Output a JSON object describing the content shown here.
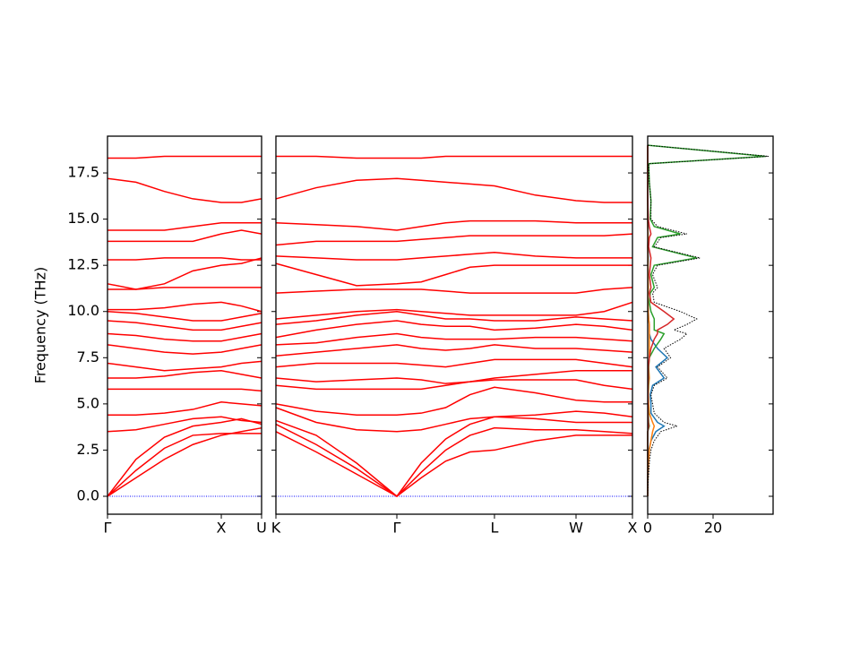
{
  "chart_data": [
    {
      "type": "line",
      "ylabel": "Frequency (THz)",
      "color": "#ff0000",
      "x": [
        0,
        0.25,
        0.5,
        0.75,
        1.0,
        1.177,
        1.354
      ],
      "xlim": [
        0,
        1.354
      ],
      "xticks": [
        {
          "value": 0,
          "label": "Γ"
        },
        {
          "value": 1.0,
          "label": "X"
        },
        {
          "value": 1.354,
          "label": "U"
        }
      ],
      "ylim": [
        -0.97,
        19.49
      ],
      "yticks": [
        {
          "value": 0,
          "label": "0.0"
        },
        2.5,
        {
          "value": 5,
          "label": "5.0"
        },
        7.5,
        {
          "value": 10,
          "label": "10.0"
        },
        12.5,
        {
          "value": 15,
          "label": "15.0"
        },
        17.5
      ],
      "series": [
        {
          "values": [
            0,
            1.0,
            2.0,
            2.8,
            3.3,
            3.5,
            3.7
          ]
        },
        {
          "values": [
            0,
            1.4,
            2.6,
            3.3,
            3.4,
            3.4,
            3.4
          ]
        },
        {
          "values": [
            0,
            2.0,
            3.2,
            3.8,
            4.0,
            4.2,
            3.9
          ]
        },
        {
          "values": [
            3.5,
            3.6,
            3.9,
            4.2,
            4.3,
            4.1,
            4.0
          ]
        },
        {
          "values": [
            4.4,
            4.4,
            4.5,
            4.7,
            5.1,
            5.0,
            4.9
          ]
        },
        {
          "values": [
            5.8,
            5.8,
            5.8,
            5.8,
            5.8,
            5.8,
            5.7
          ]
        },
        {
          "values": [
            6.4,
            6.4,
            6.5,
            6.7,
            6.8,
            6.6,
            6.4
          ]
        },
        {
          "values": [
            7.2,
            7.0,
            6.8,
            6.9,
            7.0,
            7.2,
            7.3
          ]
        },
        {
          "values": [
            8.2,
            8.0,
            7.8,
            7.7,
            7.8,
            8.0,
            8.2
          ]
        },
        {
          "values": [
            8.8,
            8.7,
            8.5,
            8.4,
            8.4,
            8.6,
            8.8
          ]
        },
        {
          "values": [
            9.5,
            9.4,
            9.2,
            9.0,
            9.0,
            9.2,
            9.4
          ]
        },
        {
          "values": [
            10.0,
            9.9,
            9.7,
            9.5,
            9.5,
            9.7,
            9.9
          ]
        },
        {
          "values": [
            10.1,
            10.1,
            10.2,
            10.4,
            10.5,
            10.3,
            10.0
          ]
        },
        {
          "values": [
            11.2,
            11.2,
            11.3,
            11.3,
            11.3,
            11.3,
            11.3
          ]
        },
        {
          "values": [
            11.5,
            11.2,
            11.5,
            12.2,
            12.5,
            12.6,
            12.9
          ]
        },
        {
          "values": [
            12.8,
            12.8,
            12.9,
            12.9,
            12.9,
            12.8,
            12.8
          ]
        },
        {
          "values": [
            13.8,
            13.8,
            13.8,
            13.8,
            14.2,
            14.4,
            14.2
          ]
        },
        {
          "values": [
            14.4,
            14.4,
            14.4,
            14.6,
            14.8,
            14.8,
            14.8
          ]
        },
        {
          "values": [
            17.2,
            17.0,
            16.5,
            16.1,
            15.9,
            15.9,
            16.1
          ]
        },
        {
          "values": [
            18.3,
            18.3,
            18.4,
            18.4,
            18.4,
            18.4,
            18.4
          ]
        }
      ]
    },
    {
      "type": "line",
      "color": "#ff0000",
      "x": [
        0,
        0.354,
        0.709,
        1.063,
        1.277,
        1.492,
        1.706,
        1.921,
        2.28,
        2.638,
        2.886,
        3.134
      ],
      "xlim": [
        0,
        3.134
      ],
      "xticks": [
        {
          "value": 0,
          "label": "K"
        },
        {
          "value": 1.063,
          "label": "Γ"
        },
        {
          "value": 1.921,
          "label": "L"
        },
        {
          "value": 2.638,
          "label": "W"
        },
        {
          "value": 3.134,
          "label": "X"
        }
      ],
      "series": [
        {
          "values": [
            3.5,
            2.4,
            1.2,
            0,
            1.0,
            1.9,
            2.4,
            2.5,
            3.0,
            3.3,
            3.3,
            3.3
          ]
        },
        {
          "values": [
            3.9,
            2.8,
            1.5,
            0,
            1.3,
            2.5,
            3.3,
            3.7,
            3.6,
            3.6,
            3.5,
            3.4
          ]
        },
        {
          "values": [
            4.1,
            3.3,
            1.8,
            0,
            1.8,
            3.1,
            3.9,
            4.3,
            4.2,
            4.0,
            4.0,
            4.0
          ]
        },
        {
          "values": [
            4.8,
            4.0,
            3.6,
            3.5,
            3.6,
            3.9,
            4.2,
            4.3,
            4.4,
            4.6,
            4.5,
            4.3
          ]
        },
        {
          "values": [
            5.0,
            4.6,
            4.4,
            4.4,
            4.5,
            4.8,
            5.5,
            5.9,
            5.6,
            5.2,
            5.1,
            5.1
          ]
        },
        {
          "values": [
            6.0,
            5.8,
            5.8,
            5.8,
            5.8,
            6.0,
            6.2,
            6.3,
            6.3,
            6.3,
            6.0,
            5.8
          ]
        },
        {
          "values": [
            6.4,
            6.2,
            6.3,
            6.4,
            6.3,
            6.1,
            6.2,
            6.4,
            6.6,
            6.8,
            6.8,
            6.8
          ]
        },
        {
          "values": [
            7.0,
            7.2,
            7.2,
            7.2,
            7.1,
            7.0,
            7.2,
            7.4,
            7.4,
            7.4,
            7.2,
            7.0
          ]
        },
        {
          "values": [
            7.6,
            7.8,
            8.0,
            8.2,
            8.0,
            7.9,
            8.0,
            8.2,
            8.0,
            8.0,
            7.9,
            7.8
          ]
        },
        {
          "values": [
            8.2,
            8.3,
            8.6,
            8.8,
            8.6,
            8.5,
            8.5,
            8.5,
            8.6,
            8.6,
            8.5,
            8.4
          ]
        },
        {
          "values": [
            8.6,
            9.0,
            9.3,
            9.5,
            9.3,
            9.2,
            9.2,
            9.0,
            9.1,
            9.3,
            9.2,
            9.0
          ]
        },
        {
          "values": [
            9.3,
            9.5,
            9.8,
            10.0,
            9.8,
            9.6,
            9.6,
            9.5,
            9.5,
            9.7,
            9.6,
            9.5
          ]
        },
        {
          "values": [
            9.6,
            9.8,
            10.0,
            10.1,
            10.0,
            9.9,
            9.8,
            9.8,
            9.8,
            9.8,
            10.0,
            10.5
          ]
        },
        {
          "values": [
            11.0,
            11.1,
            11.2,
            11.2,
            11.2,
            11.1,
            11.0,
            11.0,
            11.0,
            11.0,
            11.2,
            11.3
          ]
        },
        {
          "values": [
            12.6,
            12.0,
            11.4,
            11.5,
            11.6,
            12.0,
            12.4,
            12.5,
            12.5,
            12.5,
            12.5,
            12.5
          ]
        },
        {
          "values": [
            13.0,
            12.9,
            12.8,
            12.8,
            12.9,
            13.0,
            13.1,
            13.2,
            13.0,
            12.9,
            12.9,
            12.9
          ]
        },
        {
          "values": [
            13.6,
            13.8,
            13.8,
            13.8,
            13.9,
            14.0,
            14.1,
            14.1,
            14.1,
            14.1,
            14.1,
            14.2
          ]
        },
        {
          "values": [
            14.8,
            14.7,
            14.6,
            14.4,
            14.6,
            14.8,
            14.9,
            14.9,
            14.9,
            14.8,
            14.8,
            14.8
          ]
        },
        {
          "values": [
            16.1,
            16.7,
            17.1,
            17.2,
            17.1,
            17.0,
            16.9,
            16.8,
            16.3,
            16.0,
            15.9,
            15.9
          ]
        },
        {
          "values": [
            18.4,
            18.4,
            18.3,
            18.3,
            18.3,
            18.4,
            18.4,
            18.4,
            18.4,
            18.4,
            18.4,
            18.4
          ]
        }
      ]
    },
    {
      "type": "line",
      "orientation": "horizontal",
      "y": [
        0,
        0.5,
        1,
        1.5,
        2,
        2.5,
        3,
        3.5,
        3.8,
        4,
        4.5,
        5,
        5.5,
        6,
        6.4,
        7,
        7.5,
        8,
        8.5,
        8.8,
        9,
        9.3,
        9.6,
        10,
        10.5,
        11,
        11.3,
        12,
        12.5,
        12.9,
        13.5,
        14,
        14.2,
        14.6,
        15,
        16,
        17,
        18,
        18.4,
        19
      ],
      "xlim": [
        0,
        38.36
      ],
      "xticks": [
        0,
        20
      ],
      "series": [
        {
          "color": "#1f77b4",
          "values": [
            0,
            0,
            0,
            0.1,
            0.2,
            0.4,
            1,
            2.5,
            5,
            3,
            1,
            1,
            0.8,
            1.5,
            5,
            2.5,
            6,
            3,
            1,
            0.5,
            0.5,
            0.5,
            0.3,
            0.2,
            0.1,
            0.1,
            0.2,
            0.1,
            0.1,
            0.2,
            0.1,
            0.1,
            0.1,
            0.1,
            0,
            0,
            0,
            0,
            0,
            0
          ]
        },
        {
          "color": "#ff7f0e",
          "values": [
            0,
            0.05,
            0.1,
            0.2,
            0.3,
            0.5,
            1,
            1.5,
            2,
            1.5,
            0.5,
            0.3,
            0.2,
            0.3,
            0.5,
            0.3,
            0.5,
            0.5,
            0.5,
            0.5,
            0.5,
            0.5,
            0.3,
            0.2,
            0.1,
            0.1,
            0.2,
            0.1,
            0.1,
            0.1,
            0,
            0.1,
            0.1,
            0,
            0,
            0,
            0,
            0,
            0,
            0
          ]
        },
        {
          "color": "#2ca02c",
          "values": [
            0,
            0,
            0,
            0,
            0,
            0,
            0,
            0,
            0.5,
            0.3,
            0.2,
            0.1,
            0.1,
            0.2,
            0.3,
            0.3,
            0.5,
            2,
            4,
            5,
            2,
            2,
            2,
            1,
            0.5,
            0.8,
            2,
            1,
            2,
            15,
            1.5,
            3,
            10,
            2,
            0.8,
            1,
            0.5,
            0.3,
            36,
            0
          ]
        },
        {
          "color": "#d62728",
          "values": [
            0,
            0,
            0,
            0,
            0,
            0,
            0,
            0,
            0.3,
            0.2,
            0.1,
            0.1,
            0.1,
            0.1,
            0.2,
            0.2,
            0.5,
            1,
            2,
            3,
            3,
            6,
            8,
            5,
            1,
            0.5,
            1,
            0.5,
            0.8,
            1,
            0.3,
            0.5,
            1,
            0.5,
            0.2,
            0,
            0,
            0,
            0,
            0
          ]
        },
        {
          "color": "#000000",
          "linestyle": "dotted",
          "values": [
            0,
            0.1,
            0.2,
            0.4,
            0.6,
            1,
            2,
            4,
            9,
            5,
            2,
            1.5,
            1,
            2,
            6,
            3,
            7,
            5,
            10,
            12,
            8,
            12,
            15,
            10,
            2,
            1.5,
            3,
            1.5,
            3,
            16,
            2,
            4,
            12,
            3,
            1,
            1,
            0.5,
            0.3,
            37,
            0
          ]
        }
      ]
    }
  ]
}
